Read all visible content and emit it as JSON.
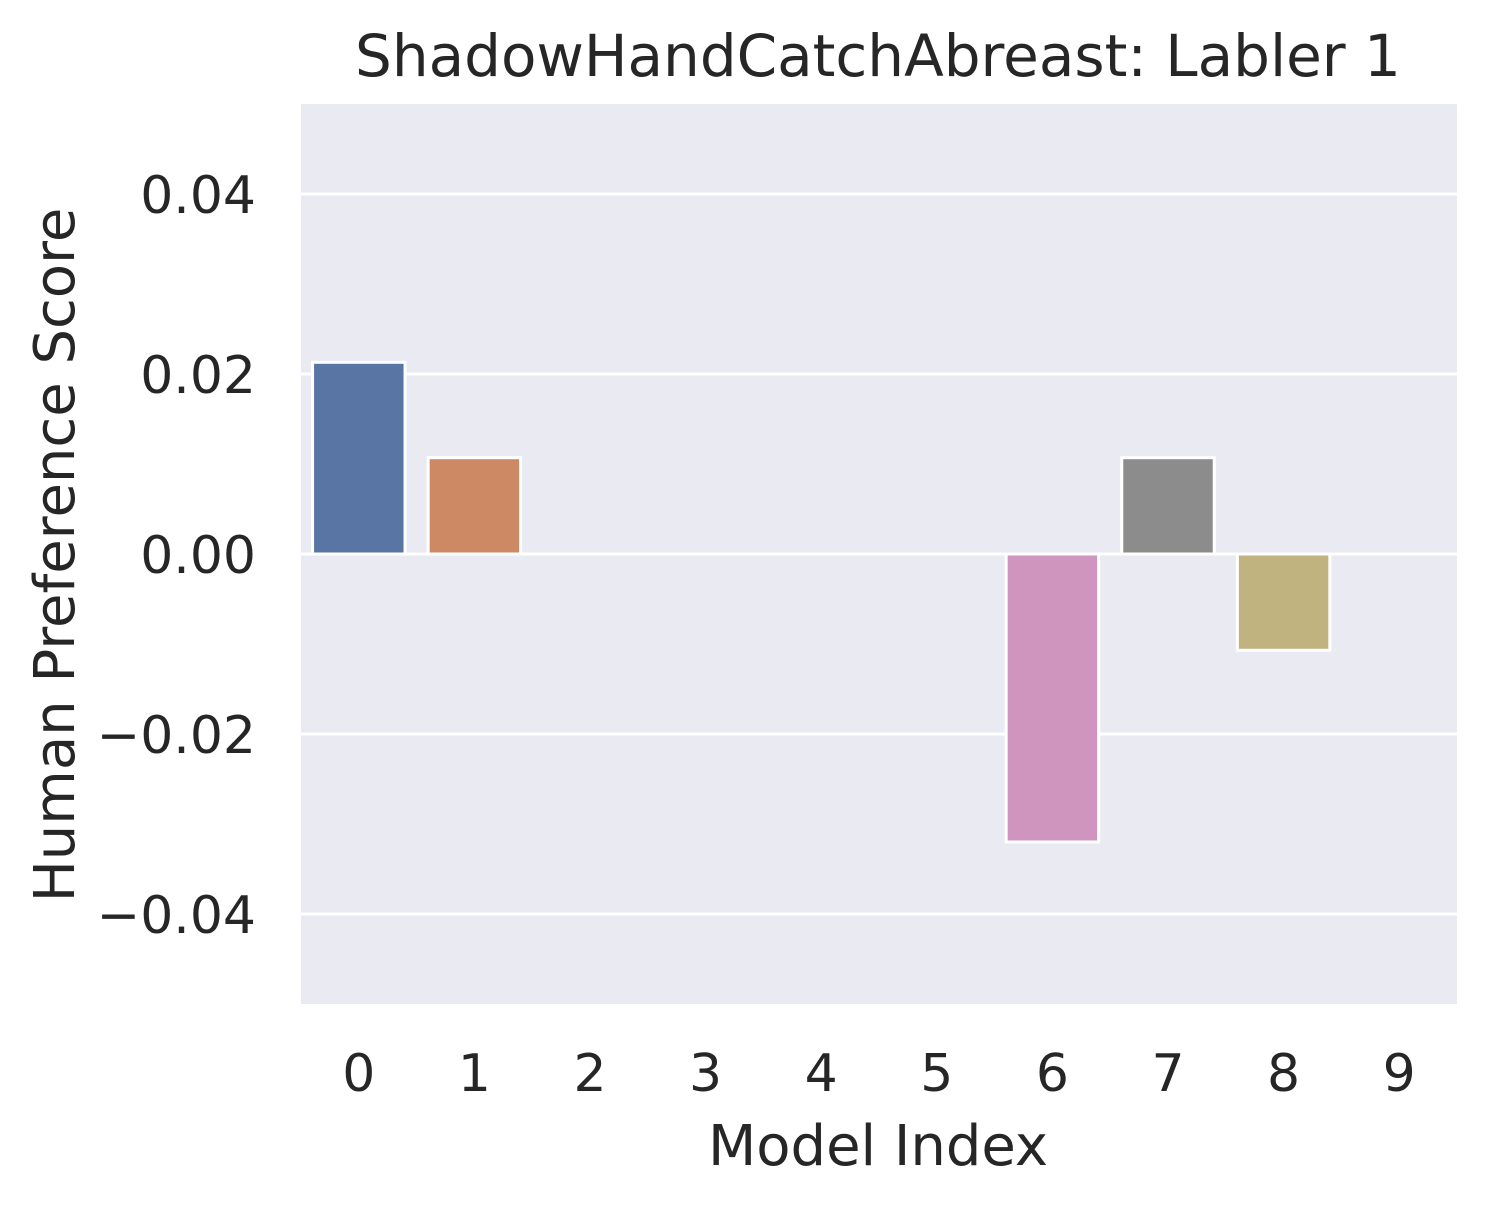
{
  "chart_data": {
    "type": "bar",
    "title": "ShadowHandCatchAbreast: Labler 1",
    "xlabel": "Model Index",
    "ylabel": "Human Preference Score",
    "categories": [
      "0",
      "1",
      "2",
      "3",
      "4",
      "5",
      "6",
      "7",
      "8",
      "9"
    ],
    "values": [
      0.0213,
      0.0107,
      0,
      0,
      0,
      0,
      -0.032,
      0.0107,
      -0.0107,
      0
    ],
    "ylim": [
      -0.05,
      0.05
    ],
    "yticks": [
      -0.04,
      -0.02,
      0.0,
      0.02,
      0.04
    ],
    "ytick_labels": [
      "−0.04",
      "−0.02",
      "0.00",
      "0.02",
      "0.04"
    ],
    "grid": true,
    "colors": {
      "background": "#EAEAF2",
      "grid": "#FFFFFF",
      "bar_edge": "#FFFFFF",
      "bars": [
        "#5875A4",
        "#CC8963",
        "#5F9E6E",
        "#B55D60",
        "#857AAB",
        "#8D7866",
        "#D095BF",
        "#8C8C8C",
        "#C1B37F",
        "#64B5CD"
      ]
    }
  }
}
